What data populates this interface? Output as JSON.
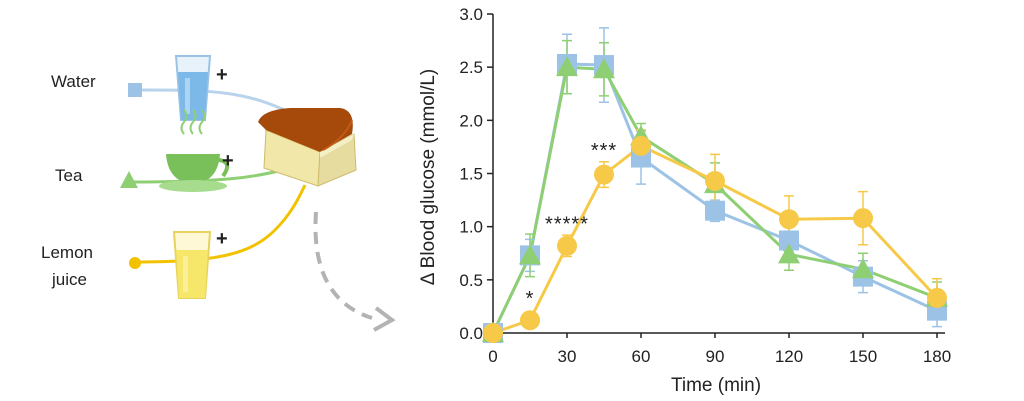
{
  "illustration": {
    "drinks": [
      {
        "label": "Water",
        "icon": "glass-of-water-icon",
        "marker": "square",
        "color": "#9cc3e6"
      },
      {
        "label": "Tea",
        "icon": "teacup-icon",
        "marker": "triangle",
        "color": "#8fcf73"
      },
      {
        "label": "Lemon juice",
        "label_lines": [
          "Lemon",
          "juice"
        ],
        "icon": "glass-of-lemon-juice-icon",
        "marker": "circle",
        "color": "#f7c948"
      }
    ],
    "plus_sign": "+",
    "food_icon": "bread-loaf-icon"
  },
  "chart_data": {
    "type": "line",
    "xlabel": "Time (min)",
    "ylabel": "Δ Blood glucose (mmol/L)",
    "x": [
      0,
      15,
      30,
      45,
      60,
      90,
      120,
      150,
      180
    ],
    "xticks": [
      "0",
      "30",
      "60",
      "90",
      "120",
      "150",
      "180"
    ],
    "xtick_values": [
      0,
      30,
      60,
      90,
      120,
      150,
      180
    ],
    "ylim": [
      0,
      3
    ],
    "yticks": [
      "0.0",
      "0.5",
      "1.0",
      "1.5",
      "2.0",
      "2.5",
      "3.0"
    ],
    "ytick_values": [
      0,
      0.5,
      1,
      1.5,
      2,
      2.5,
      3
    ],
    "grid": false,
    "series": [
      {
        "key": "water",
        "marker": "square",
        "color": "#9cc3e6",
        "values": [
          0,
          0.73,
          2.53,
          2.52,
          1.65,
          1.15,
          0.87,
          0.53,
          0.21
        ],
        "errors": [
          0,
          0.15,
          0.28,
          0.35,
          0.25,
          0.1,
          0.15,
          0.15,
          0.15
        ]
      },
      {
        "key": "tea",
        "marker": "triangle",
        "color": "#8fcf73",
        "values": [
          0,
          0.73,
          2.5,
          2.48,
          1.85,
          1.4,
          0.74,
          0.6,
          0.33
        ],
        "errors": [
          0,
          0.2,
          0.25,
          0.25,
          0.12,
          0.2,
          0.15,
          0.15,
          0.15
        ]
      },
      {
        "key": "lemon",
        "marker": "circle",
        "color": "#f7c948",
        "values": [
          0,
          0.12,
          0.82,
          1.49,
          1.76,
          1.43,
          1.07,
          1.08,
          0.33
        ],
        "errors": [
          0,
          0.05,
          0.1,
          0.12,
          0.15,
          0.25,
          0.22,
          0.25,
          0.18
        ]
      }
    ],
    "annotations": [
      {
        "text": "*",
        "x": 15,
        "y": 0.32
      },
      {
        "text": "*****",
        "x": 30,
        "y": 1.02
      },
      {
        "text": "***",
        "x": 45,
        "y": 1.71
      }
    ]
  }
}
